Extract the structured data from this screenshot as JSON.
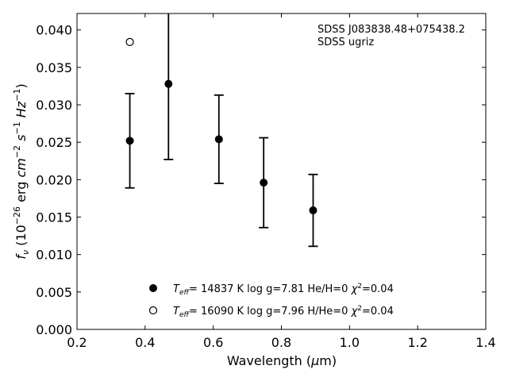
{
  "chart_data": {
    "type": "scatter",
    "xlabel": "Wavelength (μm)",
    "ylabel": "fν (10⁻²⁶ erg cm⁻² s⁻¹ Hz⁻¹)",
    "xlim": [
      0.2,
      1.4
    ],
    "ylim": [
      0.0,
      0.0422
    ],
    "xticks": [
      "0.2",
      "0.4",
      "0.6",
      "0.8",
      "1.0",
      "1.2",
      "1.4"
    ],
    "yticks": [
      "0.000",
      "0.005",
      "0.010",
      "0.015",
      "0.020",
      "0.025",
      "0.030",
      "0.035",
      "0.040"
    ],
    "annotations": [
      "SDSS J083838.48+075438.2",
      "SDSS ugriz"
    ],
    "legend_position": "lower-center",
    "series": [
      {
        "name": "Teff= 14837 K  log g=7.81  He/H=0  χ²=0.04",
        "marker": "filled-circle",
        "color": "#000000",
        "x": [
          0.3551,
          0.4686,
          0.6166,
          0.748,
          0.8932
        ],
        "y": [
          0.0252,
          0.0328,
          0.0254,
          0.0196,
          0.0159
        ],
        "yerr": [
          0.0063,
          0.0101,
          0.0059,
          0.006,
          0.0048
        ]
      },
      {
        "name": "Teff= 16090 K  log g=7.96  H/He=0  χ²=0.04",
        "marker": "open-circle",
        "color": "#000000",
        "x": [
          0.3551
        ],
        "y": [
          0.0384
        ]
      }
    ]
  }
}
